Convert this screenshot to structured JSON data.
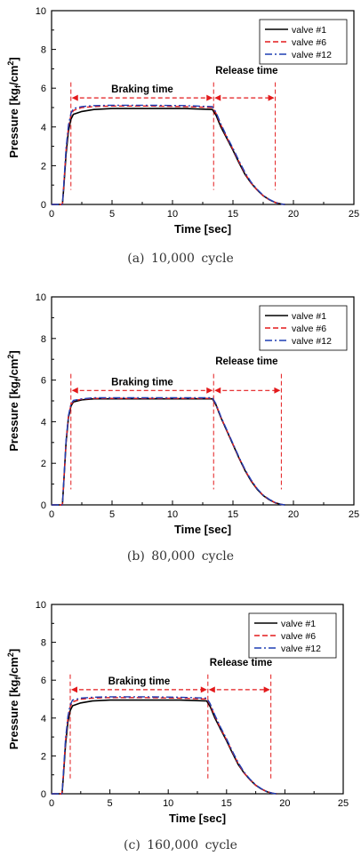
{
  "chart_data": [
    {
      "type": "line",
      "caption": "(a)  10,000  cycle",
      "xlabel": "Time [sec]",
      "ylabel": "Pressure [kgf/cm2]",
      "xlim": [
        0,
        25
      ],
      "ylim": [
        0,
        10
      ],
      "xticks": [
        0,
        5,
        10,
        15,
        20,
        25
      ],
      "yticks": [
        0,
        2,
        4,
        6,
        8,
        10
      ],
      "grid": false,
      "legend_position": "top-right",
      "series": [
        {
          "name": "valve #1",
          "color": "#000000",
          "dash": "solid",
          "x": [
            0,
            0.9,
            1.0,
            1.2,
            1.4,
            1.6,
            1.8,
            2.5,
            3.5,
            5,
            8,
            11,
            13.3,
            13.6,
            14.0,
            14.5,
            15,
            15.5,
            16,
            16.5,
            17,
            17.5,
            18,
            18.5,
            19,
            19.3
          ],
          "y": [
            0,
            0,
            0.8,
            2.6,
            3.8,
            4.4,
            4.65,
            4.8,
            4.9,
            4.95,
            4.95,
            4.95,
            4.9,
            4.6,
            4.0,
            3.4,
            2.8,
            2.15,
            1.55,
            1.1,
            0.75,
            0.45,
            0.25,
            0.1,
            0.02,
            0
          ]
        },
        {
          "name": "valve #6",
          "color": "#e31a1c",
          "dash": "dashed",
          "x": [
            0,
            0.9,
            1.0,
            1.2,
            1.4,
            1.6,
            1.8,
            2.5,
            3.5,
            5,
            8,
            11,
            13.3,
            13.6,
            14.0,
            14.5,
            15,
            15.5,
            16,
            16.5,
            17,
            17.5,
            18,
            18.5,
            19,
            19.3
          ],
          "y": [
            0,
            0,
            0.9,
            2.8,
            4.0,
            4.6,
            4.85,
            5.0,
            5.05,
            5.08,
            5.08,
            5.05,
            5.0,
            4.7,
            4.1,
            3.45,
            2.85,
            2.2,
            1.6,
            1.1,
            0.75,
            0.45,
            0.25,
            0.1,
            0.02,
            0
          ]
        },
        {
          "name": "valve #12",
          "color": "#1f3fb4",
          "dash": "dashdot",
          "x": [
            0,
            0.9,
            1.0,
            1.2,
            1.4,
            1.6,
            1.8,
            2.5,
            3.5,
            5,
            8,
            11,
            13.3,
            13.6,
            14.0,
            14.5,
            15,
            15.5,
            16,
            16.5,
            17,
            17.5,
            18,
            18.5,
            19,
            19.3
          ],
          "y": [
            0,
            0,
            0.95,
            2.9,
            4.1,
            4.7,
            4.95,
            5.05,
            5.1,
            5.12,
            5.12,
            5.1,
            5.05,
            4.75,
            4.15,
            3.5,
            2.9,
            2.25,
            1.65,
            1.15,
            0.78,
            0.47,
            0.26,
            0.1,
            0.02,
            0
          ]
        }
      ],
      "annotations": {
        "braking_label": "Braking time",
        "release_label": "Release time",
        "marker_x": [
          1.6,
          13.4,
          18.5
        ],
        "arrow_y": 5.5
      }
    },
    {
      "type": "line",
      "caption": "(b)  80,000  cycle",
      "xlabel": "Time [sec]",
      "ylabel": "Pressure [kgf/cm2]",
      "xlim": [
        0,
        25
      ],
      "ylim": [
        0,
        10
      ],
      "xticks": [
        0,
        5,
        10,
        15,
        20,
        25
      ],
      "yticks": [
        0,
        2,
        4,
        6,
        8,
        10
      ],
      "grid": false,
      "legend_position": "top-right",
      "series": [
        {
          "name": "valve #1",
          "color": "#000000",
          "dash": "solid",
          "x": [
            0,
            0.9,
            1.0,
            1.2,
            1.4,
            1.6,
            1.8,
            2.5,
            3.5,
            5,
            8,
            11,
            13.3,
            13.6,
            14.0,
            14.5,
            15,
            15.5,
            16,
            16.5,
            17,
            17.5,
            18,
            18.5,
            19,
            19.3
          ],
          "y": [
            0,
            0,
            1.0,
            3.0,
            4.2,
            4.75,
            4.95,
            5.05,
            5.1,
            5.1,
            5.1,
            5.1,
            5.1,
            4.8,
            4.2,
            3.55,
            2.9,
            2.25,
            1.65,
            1.15,
            0.75,
            0.45,
            0.25,
            0.1,
            0.02,
            0
          ]
        },
        {
          "name": "valve #6",
          "color": "#e31a1c",
          "dash": "dashed",
          "x": [
            0,
            0.9,
            1.0,
            1.2,
            1.4,
            1.6,
            1.8,
            2.5,
            3.5,
            5,
            8,
            11,
            13.3,
            13.6,
            14.0,
            14.5,
            15,
            15.5,
            16,
            16.5,
            17,
            17.5,
            18,
            18.5,
            19,
            19.3
          ],
          "y": [
            0,
            0,
            1.0,
            3.0,
            4.25,
            4.8,
            5.0,
            5.08,
            5.12,
            5.12,
            5.12,
            5.12,
            5.12,
            4.82,
            4.22,
            3.57,
            2.92,
            2.27,
            1.67,
            1.17,
            0.77,
            0.46,
            0.26,
            0.1,
            0.02,
            0
          ]
        },
        {
          "name": "valve #12",
          "color": "#1f3fb4",
          "dash": "dashdot",
          "x": [
            0,
            0.9,
            1.0,
            1.2,
            1.4,
            1.6,
            1.8,
            2.5,
            3.5,
            5,
            8,
            11,
            13.3,
            13.6,
            14.0,
            14.5,
            15,
            15.5,
            16,
            16.5,
            17,
            17.5,
            18,
            18.5,
            19,
            19.3
          ],
          "y": [
            0,
            0,
            1.05,
            3.1,
            4.3,
            4.85,
            5.02,
            5.1,
            5.15,
            5.15,
            5.15,
            5.15,
            5.15,
            4.85,
            4.25,
            3.6,
            2.95,
            2.3,
            1.7,
            1.2,
            0.78,
            0.47,
            0.27,
            0.11,
            0.02,
            0
          ]
        }
      ],
      "annotations": {
        "braking_label": "Braking time",
        "release_label": "Release time",
        "marker_x": [
          1.6,
          13.4,
          19.0
        ],
        "arrow_y": 5.5
      }
    },
    {
      "type": "line",
      "caption": "(c)  160,000  cycle",
      "xlabel": "Time [sec]",
      "ylabel": "Pressure [kgf/cm2]",
      "xlim": [
        0,
        25
      ],
      "ylim": [
        0,
        10
      ],
      "xticks": [
        0,
        5,
        10,
        15,
        20,
        25
      ],
      "yticks": [
        0,
        2,
        4,
        6,
        8,
        10
      ],
      "grid": false,
      "legend_position": "top-right",
      "series": [
        {
          "name": "valve #1",
          "color": "#000000",
          "dash": "solid",
          "x": [
            0,
            0.9,
            1.0,
            1.2,
            1.4,
            1.6,
            1.8,
            2.5,
            3.5,
            5,
            8,
            11,
            13.3,
            13.6,
            14.0,
            14.5,
            15,
            15.5,
            16,
            16.5,
            17,
            17.5,
            18,
            18.5,
            19,
            19.3
          ],
          "y": [
            0,
            0,
            0.8,
            2.6,
            3.8,
            4.4,
            4.65,
            4.8,
            4.9,
            4.95,
            4.95,
            4.95,
            4.9,
            4.6,
            4.0,
            3.4,
            2.8,
            2.15,
            1.55,
            1.1,
            0.75,
            0.45,
            0.25,
            0.1,
            0.02,
            0
          ]
        },
        {
          "name": "valve #6",
          "color": "#e31a1c",
          "dash": "dashed",
          "x": [
            0,
            0.9,
            1.0,
            1.2,
            1.4,
            1.6,
            1.8,
            2.5,
            3.5,
            5,
            8,
            11,
            13.3,
            13.6,
            14.0,
            14.5,
            15,
            15.5,
            16,
            16.5,
            17,
            17.5,
            18,
            18.5,
            19,
            19.3
          ],
          "y": [
            0,
            0,
            0.9,
            2.8,
            4.0,
            4.6,
            4.85,
            5.0,
            5.05,
            5.08,
            5.08,
            5.05,
            5.0,
            4.7,
            4.1,
            3.45,
            2.85,
            2.2,
            1.6,
            1.1,
            0.75,
            0.45,
            0.25,
            0.1,
            0.02,
            0
          ]
        },
        {
          "name": "valve #12",
          "color": "#1f3fb4",
          "dash": "dashdot",
          "x": [
            0,
            0.9,
            1.0,
            1.2,
            1.4,
            1.6,
            1.8,
            2.5,
            3.5,
            5,
            8,
            11,
            13.3,
            13.6,
            14.0,
            14.5,
            15,
            15.5,
            16,
            16.5,
            17,
            17.5,
            18,
            18.5,
            19,
            19.3
          ],
          "y": [
            0,
            0,
            0.95,
            2.9,
            4.1,
            4.7,
            4.95,
            5.05,
            5.1,
            5.12,
            5.12,
            5.1,
            5.05,
            4.75,
            4.15,
            3.5,
            2.9,
            2.25,
            1.65,
            1.15,
            0.78,
            0.47,
            0.26,
            0.1,
            0.02,
            0
          ]
        }
      ],
      "annotations": {
        "braking_label": "Braking time",
        "release_label": "Release time",
        "marker_x": [
          1.6,
          13.4,
          18.8
        ],
        "arrow_y": 5.5
      }
    }
  ]
}
